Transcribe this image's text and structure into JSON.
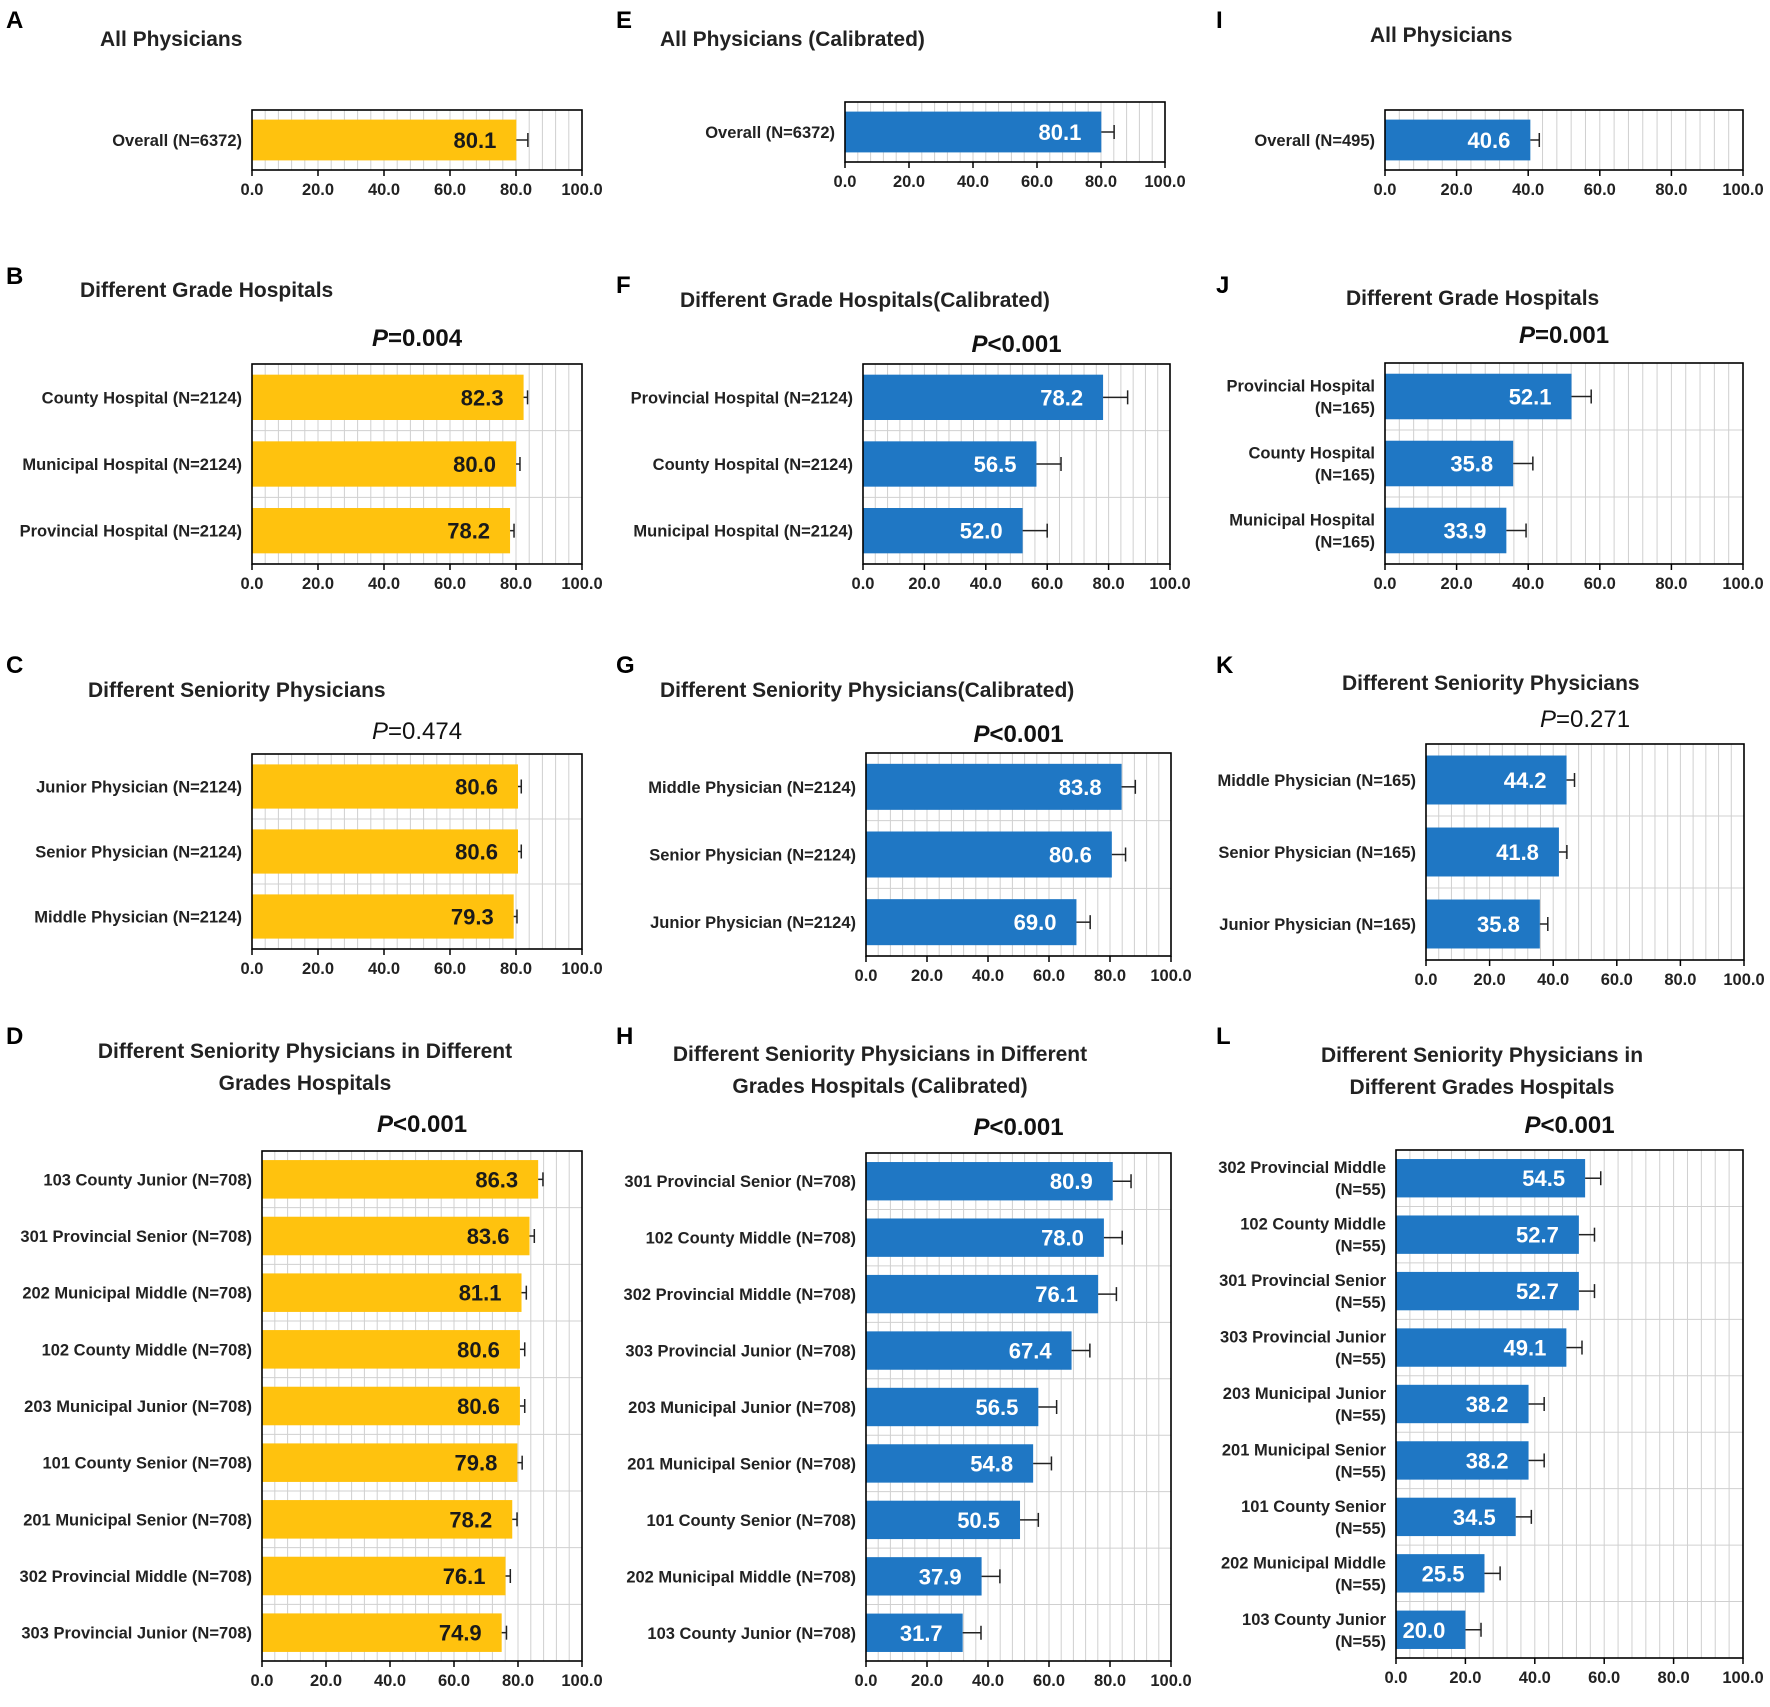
{
  "figure": {
    "tick_labels": [
      "0.0",
      "20.0",
      "40.0",
      "60.0",
      "80.0",
      "100.0"
    ],
    "colors": {
      "orange": "#FFC20E",
      "blue": "#1F77C4",
      "axis": "#000000",
      "grid": "#D0D0D0"
    }
  },
  "chart_data": [
    {
      "id": "A",
      "panel_label": "A",
      "type": "bar",
      "orientation": "horizontal",
      "title_lines": [
        "All Physicians"
      ],
      "p_value": null,
      "categories": [
        "Overall (N=6372)"
      ],
      "values": [
        80.1
      ],
      "errors": [
        3.5
      ],
      "xlim": [
        0,
        100
      ],
      "color": "orange",
      "grid": true
    },
    {
      "id": "B",
      "panel_label": "B",
      "type": "bar",
      "orientation": "horizontal",
      "title_lines": [
        "Different Grade Hospitals"
      ],
      "p_value": {
        "prefix": "P",
        "text": "=0.004",
        "bold": true
      },
      "categories": [
        "County Hospital (N=2124)",
        "Municipal Hospital (N=2124)",
        "Provincial Hospital (N=2124)"
      ],
      "values": [
        82.3,
        80.0,
        78.2
      ],
      "errors": [
        1.2,
        1.2,
        1.2
      ],
      "xlim": [
        0,
        100
      ],
      "color": "orange",
      "grid": true
    },
    {
      "id": "C",
      "panel_label": "C",
      "type": "bar",
      "orientation": "horizontal",
      "title_lines": [
        "Different Seniority Physicians"
      ],
      "p_value": {
        "prefix": "P",
        "text": "=0.474",
        "bold": false
      },
      "categories": [
        "Junior Physician (N=2124)",
        "Senior Physician (N=2124)",
        "Middle Physician (N=2124)"
      ],
      "values": [
        80.6,
        80.6,
        79.3
      ],
      "errors": [
        1.0,
        1.0,
        1.0
      ],
      "xlim": [
        0,
        100
      ],
      "color": "orange",
      "grid": true
    },
    {
      "id": "D",
      "panel_label": "D",
      "type": "bar",
      "orientation": "horizontal",
      "title_lines": [
        "Different Seniority Physicians in Different",
        "Grades Hospitals"
      ],
      "p_value": {
        "prefix": "P",
        "text": "<0.001",
        "bold": true
      },
      "categories": [
        "103 County Junior (N=708)",
        "301 Provincial Senior (N=708)",
        "202 Municipal Middle (N=708)",
        "102 County Middle (N=708)",
        "203 Municipal Junior (N=708)",
        "101 County Senior (N=708)",
        "201 Municipal Senior (N=708)",
        "302 Provincial Middle (N=708)",
        "303 Provincial Junior (N=708)"
      ],
      "values": [
        86.3,
        83.6,
        81.1,
        80.6,
        80.6,
        79.8,
        78.2,
        76.1,
        74.9
      ],
      "errors": [
        1.5,
        1.5,
        1.5,
        1.5,
        1.5,
        1.5,
        1.5,
        1.5,
        1.5
      ],
      "xlim": [
        0,
        100
      ],
      "color": "orange",
      "grid": true
    },
    {
      "id": "E",
      "panel_label": "E",
      "type": "bar",
      "orientation": "horizontal",
      "title_lines": [
        "All Physicians (Calibrated)"
      ],
      "p_value": null,
      "categories": [
        "Overall (N=6372)"
      ],
      "values": [
        80.1
      ],
      "errors": [
        4.0
      ],
      "xlim": [
        0,
        100
      ],
      "color": "blue",
      "grid": true
    },
    {
      "id": "F",
      "panel_label": "F",
      "type": "bar",
      "orientation": "horizontal",
      "title_lines": [
        "Different Grade Hospitals(Calibrated)"
      ],
      "p_value": {
        "prefix": "P",
        "text": "<0.001",
        "bold": true
      },
      "categories": [
        "Provincial Hospital (N=2124)",
        "County Hospital (N=2124)",
        "Municipal Hospital (N=2124)"
      ],
      "values": [
        78.2,
        56.5,
        52.0
      ],
      "errors": [
        8.0,
        8.0,
        8.0
      ],
      "xlim": [
        0,
        100
      ],
      "color": "blue",
      "grid": true
    },
    {
      "id": "G",
      "panel_label": "G",
      "type": "bar",
      "orientation": "horizontal",
      "title_lines": [
        "Different Seniority Physicians(Calibrated)"
      ],
      "p_value": {
        "prefix": "P",
        "text": "<0.001",
        "bold": true
      },
      "categories": [
        "Middle Physician (N=2124)",
        "Senior Physician (N=2124)",
        "Junior Physician (N=2124)"
      ],
      "values": [
        83.8,
        80.6,
        69.0
      ],
      "errors": [
        4.5,
        4.5,
        4.5
      ],
      "xlim": [
        0,
        100
      ],
      "color": "blue",
      "grid": true
    },
    {
      "id": "H",
      "panel_label": "H",
      "type": "bar",
      "orientation": "horizontal",
      "title_lines": [
        "Different Seniority Physicians in Different",
        "Grades Hospitals (Calibrated)"
      ],
      "p_value": {
        "prefix": "P",
        "text": "<0.001",
        "bold": true
      },
      "categories": [
        "301 Provincial Senior (N=708)",
        "102 County Middle (N=708)",
        "302 Provincial Middle (N=708)",
        "303 Provincial Junior (N=708)",
        "203 Municipal Junior (N=708)",
        "201 Municipal Senior (N=708)",
        "101 County Senior (N=708)",
        "202 Municipal Middle (N=708)",
        "103 County Junior (N=708)"
      ],
      "values": [
        80.9,
        78.0,
        76.1,
        67.4,
        56.5,
        54.8,
        50.5,
        37.9,
        31.7
      ],
      "errors": [
        6.0,
        6.0,
        6.0,
        6.0,
        6.0,
        6.0,
        6.0,
        6.0,
        6.0
      ],
      "xlim": [
        0,
        100
      ],
      "color": "blue",
      "grid": true
    },
    {
      "id": "I",
      "panel_label": "I",
      "type": "bar",
      "orientation": "horizontal",
      "title_lines": [
        "All Physicians"
      ],
      "p_value": null,
      "categories": [
        "Overall (N=495)"
      ],
      "values": [
        40.6
      ],
      "errors": [
        2.5
      ],
      "xlim": [
        0,
        100
      ],
      "color": "blue",
      "grid": true
    },
    {
      "id": "J",
      "panel_label": "J",
      "type": "bar",
      "orientation": "horizontal",
      "title_lines": [
        "Different Grade Hospitals"
      ],
      "p_value": {
        "prefix": "P",
        "text": "=0.001",
        "bold": true
      },
      "categories": [
        [
          "Provincial Hospital",
          "(N=165)"
        ],
        [
          "County Hospital",
          "(N=165)"
        ],
        [
          "Municipal Hospital",
          "(N=165)"
        ]
      ],
      "values": [
        52.1,
        35.8,
        33.9
      ],
      "errors": [
        5.5,
        5.5,
        5.5
      ],
      "xlim": [
        0,
        100
      ],
      "color": "blue",
      "grid": true
    },
    {
      "id": "K",
      "panel_label": "K",
      "type": "bar",
      "orientation": "horizontal",
      "title_lines": [
        "Different Seniority Physicians"
      ],
      "p_value": {
        "prefix": "P",
        "text": "=0.271",
        "bold": false
      },
      "categories": [
        "Middle Physician (N=165)",
        "Senior Physician (N=165)",
        "Junior Physician (N=165)"
      ],
      "values": [
        44.2,
        41.8,
        35.8
      ],
      "errors": [
        2.5,
        2.5,
        2.5
      ],
      "xlim": [
        0,
        100
      ],
      "color": "blue",
      "grid": true
    },
    {
      "id": "L",
      "panel_label": "L",
      "type": "bar",
      "orientation": "horizontal",
      "title_lines": [
        "Different Seniority Physicians in",
        "Different Grades Hospitals"
      ],
      "p_value": {
        "prefix": "P",
        "text": "<0.001",
        "bold": true
      },
      "categories": [
        [
          "302 Provincial Middle",
          "(N=55)"
        ],
        [
          "102 County Middle",
          "(N=55)"
        ],
        [
          "301 Provincial Senior",
          "(N=55)"
        ],
        [
          "303 Provincial Junior",
          "(N=55)"
        ],
        [
          "203 Municipal Junior",
          "(N=55)"
        ],
        [
          "201 Municipal Senior",
          "(N=55)"
        ],
        [
          "101 County Senior",
          "(N=55)"
        ],
        [
          "202 Municipal Middle",
          "(N=55)"
        ],
        [
          "103 County Junior",
          "(N=55)"
        ]
      ],
      "values": [
        54.5,
        52.7,
        52.7,
        49.1,
        38.2,
        38.2,
        34.5,
        25.5,
        20.0
      ],
      "errors": [
        4.5,
        4.5,
        4.5,
        4.5,
        4.5,
        4.5,
        4.5,
        4.5,
        4.5
      ],
      "xlim": [
        0,
        100
      ],
      "color": "blue",
      "grid": true
    }
  ]
}
